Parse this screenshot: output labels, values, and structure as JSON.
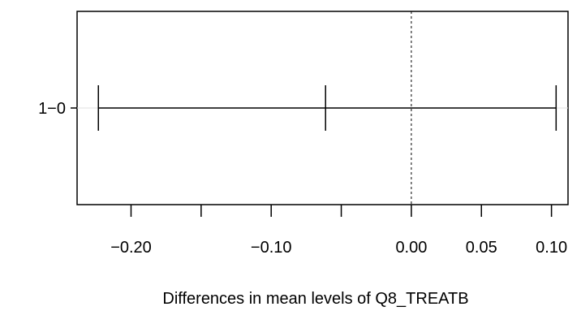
{
  "chart_data": {
    "type": "interval",
    "title": "",
    "xlabel": "Differences in mean levels of Q8_TREATB",
    "ylabel": "",
    "xlim": [
      -0.2385,
      0.1118
    ],
    "xticks": [
      -0.2,
      -0.15,
      -0.1,
      -0.05,
      0.0,
      0.05,
      0.1
    ],
    "xtick_labels": [
      "−0.20",
      "",
      "−0.10",
      "",
      "0.00",
      "0.05",
      "0.10"
    ],
    "reference_line": 0,
    "intervals": [
      {
        "label": "1−0",
        "lower": -0.2233,
        "estimate": -0.0612,
        "upper": 0.1033
      }
    ],
    "grid": false
  }
}
